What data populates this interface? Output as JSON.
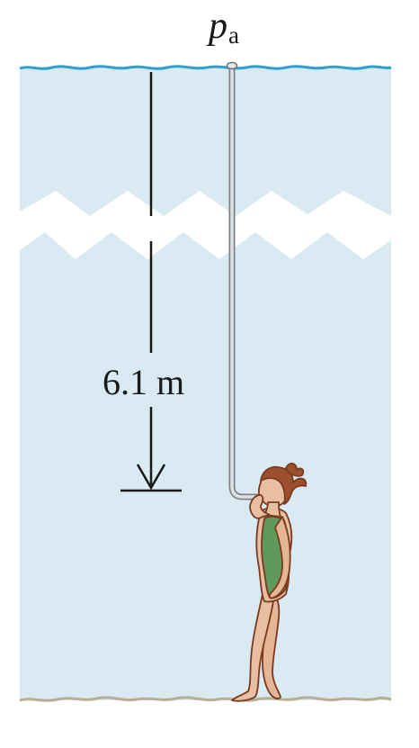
{
  "labels": {
    "pressure_symbol": "p",
    "pressure_subscript": "a",
    "depth": "6.1 m"
  },
  "colors": {
    "water": "#d9eaf3",
    "surface_line": "#2f9fd0",
    "bottom_line": "#b9ad98",
    "tube": "#a8acb0",
    "skin": "#e9bfa3",
    "outline": "#7a3a1e",
    "hair": "#9b4f2c",
    "swimsuit": "#5f9a5c"
  },
  "icons": {
    "swimmer": "swimmer-with-snorkel-tube",
    "depth_arrow": "down-arrow-to-depth-marker",
    "break_symbol": "zigzag-break"
  }
}
